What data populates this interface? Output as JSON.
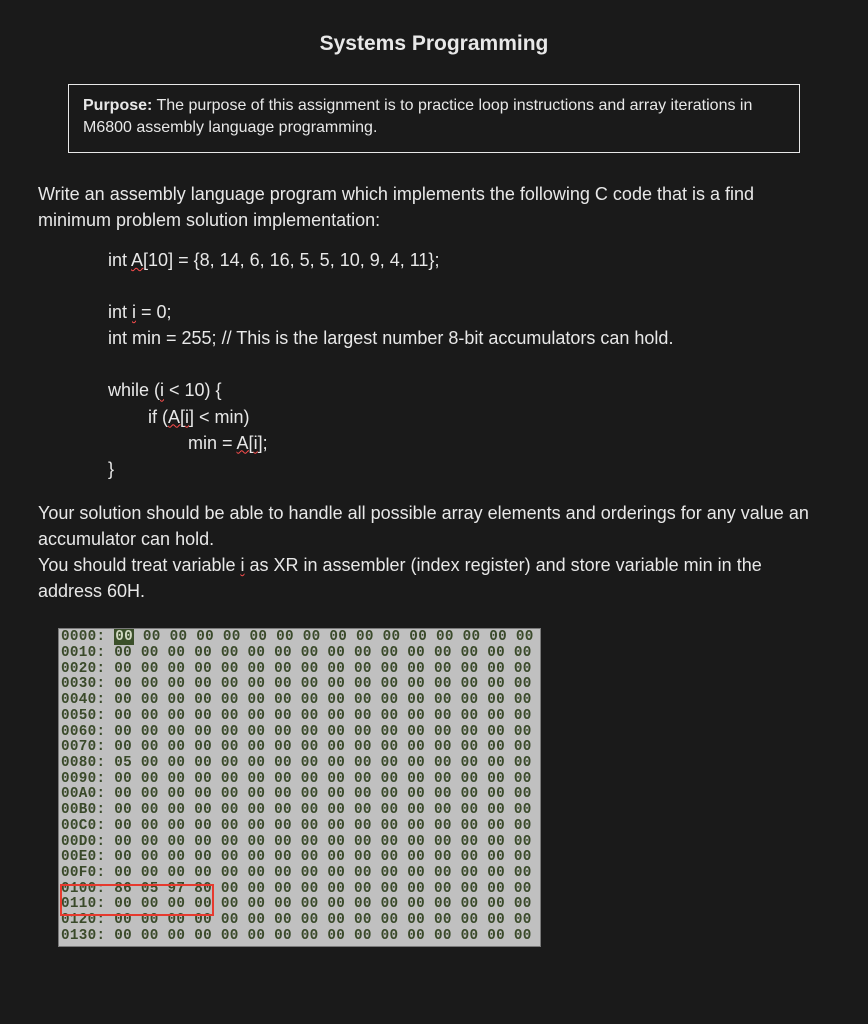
{
  "title": "Systems Programming",
  "purpose": {
    "label": "Purpose:",
    "text": " The purpose of this assignment is to practice loop instructions and array iterations in M6800 assembly language programming."
  },
  "intro": "Write an assembly language program which implements the following C code that is a find minimum problem solution implementation:",
  "code_lines": [
    "int A[10] = {8, 14, 6, 16, 5, 5, 10, 9, 4, 11};",
    "",
    "int i = 0;",
    "int min = 255; // This is the largest number 8-bit accumulators can hold.",
    "",
    "while (i < 10) {",
    "        if (A[i] < min)",
    "                min = A[i];",
    "}"
  ],
  "para2": "Your solution should be able to handle all possible array elements and orderings for any value an accumulator can hold.",
  "para3_a": "You should treat variable ",
  "para3_var": "i",
  "para3_b": " as XR in assembler (index register) and store variable min in the address 60H.",
  "memdump": {
    "background_color": "#c0c0c0",
    "text_color": "#3a4a2a",
    "highlight_bg": "#3b4f2a",
    "highlight_fg": "#d0d8c0",
    "redbox_color": "#e63a2e",
    "font_family": "Courier New",
    "rows": [
      {
        "addr": "0000:",
        "bytes": [
          "00",
          "00",
          "00",
          "00",
          "00",
          "00",
          "00",
          "00",
          "00",
          "00",
          "00",
          "00",
          "00",
          "00",
          "00",
          "00"
        ],
        "first_hl": true
      },
      {
        "addr": "0010:",
        "bytes": [
          "00",
          "00",
          "00",
          "00",
          "00",
          "00",
          "00",
          "00",
          "00",
          "00",
          "00",
          "00",
          "00",
          "00",
          "00",
          "00"
        ]
      },
      {
        "addr": "0020:",
        "bytes": [
          "00",
          "00",
          "00",
          "00",
          "00",
          "00",
          "00",
          "00",
          "00",
          "00",
          "00",
          "00",
          "00",
          "00",
          "00",
          "00"
        ]
      },
      {
        "addr": "0030:",
        "bytes": [
          "00",
          "00",
          "00",
          "00",
          "00",
          "00",
          "00",
          "00",
          "00",
          "00",
          "00",
          "00",
          "00",
          "00",
          "00",
          "00"
        ]
      },
      {
        "addr": "0040:",
        "bytes": [
          "00",
          "00",
          "00",
          "00",
          "00",
          "00",
          "00",
          "00",
          "00",
          "00",
          "00",
          "00",
          "00",
          "00",
          "00",
          "00"
        ]
      },
      {
        "addr": "0050:",
        "bytes": [
          "00",
          "00",
          "00",
          "00",
          "00",
          "00",
          "00",
          "00",
          "00",
          "00",
          "00",
          "00",
          "00",
          "00",
          "00",
          "00"
        ]
      },
      {
        "addr": "0060:",
        "bytes": [
          "00",
          "00",
          "00",
          "00",
          "00",
          "00",
          "00",
          "00",
          "00",
          "00",
          "00",
          "00",
          "00",
          "00",
          "00",
          "00"
        ]
      },
      {
        "addr": "0070:",
        "bytes": [
          "00",
          "00",
          "00",
          "00",
          "00",
          "00",
          "00",
          "00",
          "00",
          "00",
          "00",
          "00",
          "00",
          "00",
          "00",
          "00"
        ]
      },
      {
        "addr": "0080:",
        "bytes": [
          "05",
          "00",
          "00",
          "00",
          "00",
          "00",
          "00",
          "00",
          "00",
          "00",
          "00",
          "00",
          "00",
          "00",
          "00",
          "00"
        ]
      },
      {
        "addr": "0090:",
        "bytes": [
          "00",
          "00",
          "00",
          "00",
          "00",
          "00",
          "00",
          "00",
          "00",
          "00",
          "00",
          "00",
          "00",
          "00",
          "00",
          "00"
        ]
      },
      {
        "addr": "00A0:",
        "bytes": [
          "00",
          "00",
          "00",
          "00",
          "00",
          "00",
          "00",
          "00",
          "00",
          "00",
          "00",
          "00",
          "00",
          "00",
          "00",
          "00"
        ]
      },
      {
        "addr": "00B0:",
        "bytes": [
          "00",
          "00",
          "00",
          "00",
          "00",
          "00",
          "00",
          "00",
          "00",
          "00",
          "00",
          "00",
          "00",
          "00",
          "00",
          "00"
        ]
      },
      {
        "addr": "00C0:",
        "bytes": [
          "00",
          "00",
          "00",
          "00",
          "00",
          "00",
          "00",
          "00",
          "00",
          "00",
          "00",
          "00",
          "00",
          "00",
          "00",
          "00"
        ]
      },
      {
        "addr": "00D0:",
        "bytes": [
          "00",
          "00",
          "00",
          "00",
          "00",
          "00",
          "00",
          "00",
          "00",
          "00",
          "00",
          "00",
          "00",
          "00",
          "00",
          "00"
        ]
      },
      {
        "addr": "00E0:",
        "bytes": [
          "00",
          "00",
          "00",
          "00",
          "00",
          "00",
          "00",
          "00",
          "00",
          "00",
          "00",
          "00",
          "00",
          "00",
          "00",
          "00"
        ]
      },
      {
        "addr": "00F0:",
        "bytes": [
          "00",
          "00",
          "00",
          "00",
          "00",
          "00",
          "00",
          "00",
          "00",
          "00",
          "00",
          "00",
          "00",
          "00",
          "00",
          "00"
        ]
      },
      {
        "addr": "0100:",
        "bytes": [
          "86",
          "05",
          "97",
          "80",
          "00",
          "00",
          "00",
          "00",
          "00",
          "00",
          "00",
          "00",
          "00",
          "00",
          "00",
          "00"
        ]
      },
      {
        "addr": "0110:",
        "bytes": [
          "00",
          "00",
          "00",
          "00",
          "00",
          "00",
          "00",
          "00",
          "00",
          "00",
          "00",
          "00",
          "00",
          "00",
          "00",
          "00"
        ]
      },
      {
        "addr": "0120:",
        "bytes": [
          "00",
          "00",
          "00",
          "00",
          "00",
          "00",
          "00",
          "00",
          "00",
          "00",
          "00",
          "00",
          "00",
          "00",
          "00",
          "00"
        ]
      },
      {
        "addr": "0130:",
        "bytes": [
          "00",
          "00",
          "00",
          "00",
          "00",
          "00",
          "00",
          "00",
          "00",
          "00",
          "00",
          "00",
          "00",
          "00",
          "00",
          "00"
        ]
      }
    ]
  }
}
